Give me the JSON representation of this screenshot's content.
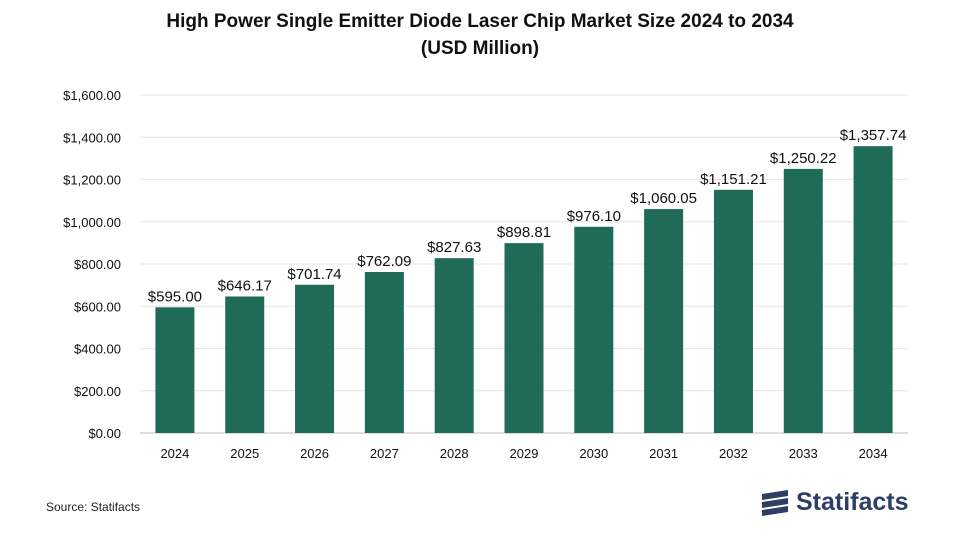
{
  "chart_data": {
    "type": "bar",
    "title_line1": "High Power Single Emitter Diode Laser Chip Market Size 2024 to 2034",
    "title_line2": "(USD Million)",
    "categories": [
      "2024",
      "2025",
      "2026",
      "2027",
      "2028",
      "2029",
      "2030",
      "2031",
      "2032",
      "2033",
      "2034"
    ],
    "values": [
      595.0,
      646.17,
      701.74,
      762.09,
      827.63,
      898.81,
      976.1,
      1060.05,
      1151.21,
      1250.22,
      1357.74
    ],
    "value_labels": [
      "$595.00",
      "$646.17",
      "$701.74",
      "$762.09",
      "$827.63",
      "$898.81",
      "$976.10",
      "$1,060.05",
      "$1,151.21",
      "$1,250.22",
      "$1,357.74"
    ],
    "yticks": [
      0,
      200,
      400,
      600,
      800,
      1000,
      1200,
      1400,
      1600
    ],
    "ytick_labels": [
      "$0.00",
      "$200.00",
      "$400.00",
      "$600.00",
      "$800.00",
      "$1,000.00",
      "$1,200.00",
      "$1,400.00",
      "$1,600.00"
    ],
    "ylim": [
      0,
      1600
    ],
    "bar_color": "#1f6b57",
    "grid": true,
    "xlabel": "",
    "ylabel": ""
  },
  "footer": {
    "source": "Source: Statifacts",
    "brand": "Statifacts"
  },
  "colors": {
    "brand": "#2c3e66",
    "grid": "#e6e6e6"
  }
}
